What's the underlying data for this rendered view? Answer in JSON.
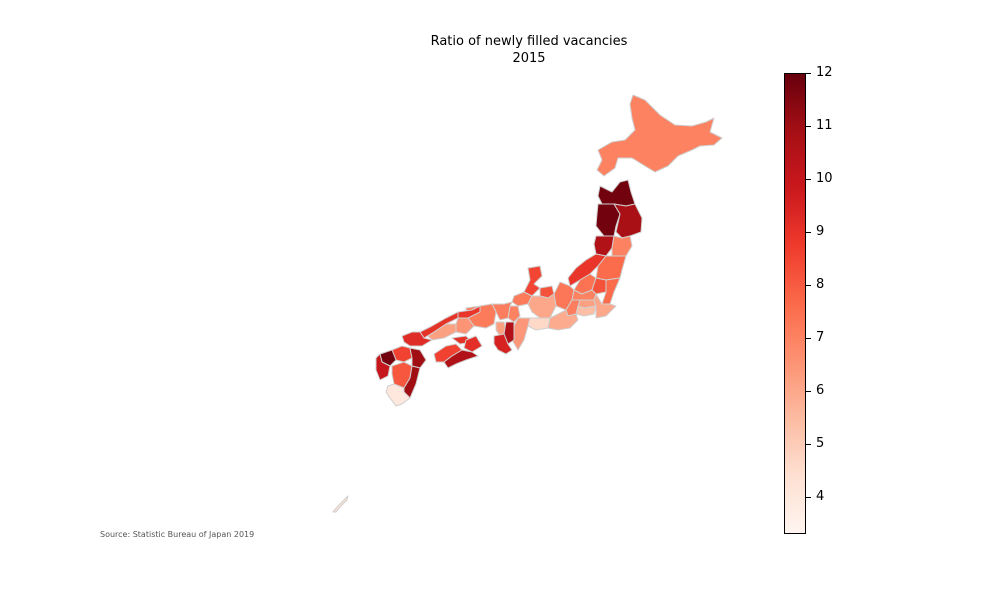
{
  "title": "Ratio of newly filled vacancies",
  "subtitle": "2015",
  "source": "Source: Statistic Bureau of Japan 2019",
  "colorbar": {
    "min": 3.3,
    "max": 12.0,
    "ticks": [
      "4",
      "5",
      "6",
      "7",
      "8",
      "9",
      "10",
      "11",
      "12"
    ],
    "colors": [
      "#fff5f0",
      "#fee0d2",
      "#fcbba1",
      "#fc9272",
      "#fb6a4a",
      "#ef3b2c",
      "#cb181d",
      "#a50f15",
      "#67000d"
    ]
  },
  "chart_data": {
    "type": "choropleth",
    "title": "Ratio of newly filled vacancies",
    "subtitle": "2015",
    "colorscale": "Reds",
    "range": [
      3.3,
      12.0
    ],
    "regions": [
      {
        "name": "Hokkaido",
        "value": 7.0
      },
      {
        "name": "Aomori",
        "value": 11.8
      },
      {
        "name": "Akita",
        "value": 11.8
      },
      {
        "name": "Iwate",
        "value": 10.8
      },
      {
        "name": "Yamagata",
        "value": 10.6
      },
      {
        "name": "Miyagi",
        "value": 7.0
      },
      {
        "name": "Niigata",
        "value": 8.9
      },
      {
        "name": "Fukushima",
        "value": 7.6
      },
      {
        "name": "Gunma",
        "value": 7.4
      },
      {
        "name": "Tochigi",
        "value": 8.2
      },
      {
        "name": "Ibaraki",
        "value": 7.6
      },
      {
        "name": "Nagano",
        "value": 7.3
      },
      {
        "name": "Saitama",
        "value": 7.0
      },
      {
        "name": "Tokyo",
        "value": 6.2
      },
      {
        "name": "Chiba",
        "value": 6.0
      },
      {
        "name": "Kanagawa",
        "value": 5.4
      },
      {
        "name": "Yamanashi",
        "value": 7.1
      },
      {
        "name": "Shizuoka",
        "value": 5.9
      },
      {
        "name": "Toyama",
        "value": 8.2
      },
      {
        "name": "Ishikawa",
        "value": 8.5
      },
      {
        "name": "Fukui",
        "value": 7.2
      },
      {
        "name": "Gifu",
        "value": 6.0
      },
      {
        "name": "Aichi",
        "value": 4.6
      },
      {
        "name": "Mie",
        "value": 6.4
      },
      {
        "name": "Shiga",
        "value": 7.0
      },
      {
        "name": "Kyoto",
        "value": 7.1
      },
      {
        "name": "Hyogo",
        "value": 7.2
      },
      {
        "name": "Osaka",
        "value": 6.2
      },
      {
        "name": "Nara",
        "value": 10.6
      },
      {
        "name": "Wakayama",
        "value": 9.5
      },
      {
        "name": "Tottori",
        "value": 8.9
      },
      {
        "name": "Shimane",
        "value": 9.0
      },
      {
        "name": "Okayama",
        "value": 6.5
      },
      {
        "name": "Hiroshima",
        "value": 6.2
      },
      {
        "name": "Yamaguchi",
        "value": 9.2
      },
      {
        "name": "Kagawa",
        "value": 9.0
      },
      {
        "name": "Tokushima",
        "value": 9.1
      },
      {
        "name": "Ehime",
        "value": 8.6
      },
      {
        "name": "Kochi",
        "value": 10.6
      },
      {
        "name": "Fukuoka",
        "value": 8.6
      },
      {
        "name": "Saga",
        "value": 11.8
      },
      {
        "name": "Nagasaki",
        "value": 10.0
      },
      {
        "name": "Oita",
        "value": 11.0
      },
      {
        "name": "Kumamoto",
        "value": 8.1
      },
      {
        "name": "Miyazaki",
        "value": 11.0
      },
      {
        "name": "Kagoshima",
        "value": 4.0
      },
      {
        "name": "Okinawa",
        "value": 4.2
      }
    ]
  }
}
